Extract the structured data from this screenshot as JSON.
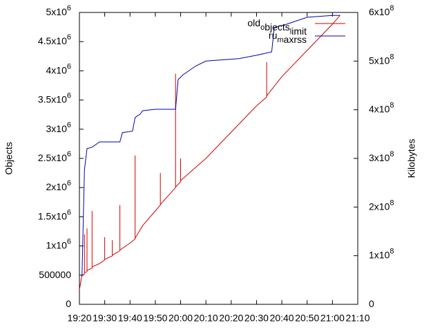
{
  "chart_data": {
    "type": "line",
    "y_label": "Objects",
    "y2_label": "Kilobytes",
    "xlim": [
      "19:20",
      "21:10"
    ],
    "xticks": [
      "19:20",
      "19:30",
      "19:40",
      "19:50",
      "20:00",
      "20:10",
      "20:20",
      "20:30",
      "20:40",
      "20:50",
      "21:00",
      "21:10"
    ],
    "ylim": [
      0,
      5000000
    ],
    "yticks": [
      0,
      500000,
      {
        "value": 1000000,
        "label": "1x10^6"
      },
      {
        "value": 1500000,
        "label": "1.5x10^6"
      },
      {
        "value": 2000000,
        "label": "2x10^6"
      },
      {
        "value": 2500000,
        "label": "2.5x10^6"
      },
      {
        "value": 3000000,
        "label": "3x10^6"
      },
      {
        "value": 3500000,
        "label": "3.5x10^6"
      },
      {
        "value": 4000000,
        "label": "4x10^6"
      },
      {
        "value": 4500000,
        "label": "4.5x10^6"
      },
      {
        "value": 5000000,
        "label": "5x10^6"
      }
    ],
    "y2lim": [
      0,
      600000000
    ],
    "y2ticks": [
      0,
      {
        "value": 100000000,
        "label": "1x10^8"
      },
      {
        "value": 200000000,
        "label": "2x10^8"
      },
      {
        "value": 300000000,
        "label": "3x10^8"
      },
      {
        "value": 400000000,
        "label": "4x10^8"
      },
      {
        "value": 500000000,
        "label": "5x10^8"
      },
      {
        "value": 600000000,
        "label": "6x10^8"
      }
    ],
    "legend": "top-right",
    "series": [
      {
        "name": "old_objects_limit",
        "color": "#d00000",
        "axis": "y",
        "x": [
          "19:20",
          "19:21",
          "19:22",
          "19:22",
          "19:22",
          "19:23",
          "19:23",
          "19:23",
          "19:25",
          "19:25",
          "19:25",
          "19:28",
          "19:30",
          "19:30",
          "19:30",
          "19:33",
          "19:33",
          "19:33",
          "19:36",
          "19:36",
          "19:36",
          "19:40",
          "19:42",
          "19:42",
          "19:42",
          "19:45",
          "19:50",
          "19:52",
          "19:52",
          "19:52",
          "19:58",
          "19:58",
          "19:58",
          "20:00",
          "20:00",
          "20:00",
          "20:10",
          "20:20",
          "20:30",
          "20:34",
          "20:34",
          "20:34",
          "20:40",
          "20:50",
          "21:00",
          "21:03"
        ],
        "values": [
          250000,
          500000,
          520000,
          1200000,
          540000,
          560000,
          1300000,
          580000,
          620000,
          1600000,
          640000,
          700000,
          760000,
          1150000,
          770000,
          830000,
          1100000,
          840000,
          920000,
          1700000,
          930000,
          1050000,
          1120000,
          2550000,
          1130000,
          1350000,
          1600000,
          1700000,
          2250000,
          1710000,
          2000000,
          3950000,
          2010000,
          2100000,
          2500000,
          2120000,
          2500000,
          2950000,
          3400000,
          3550000,
          4150000,
          3570000,
          3900000,
          4350000,
          4800000,
          4950000
        ]
      },
      {
        "name": "ru_maxrss",
        "color": "#0000b0",
        "axis": "y2",
        "x": [
          "19:21",
          "19:22",
          "19:23",
          "19:25",
          "19:28",
          "19:36",
          "19:37",
          "19:41",
          "19:42",
          "19:44",
          "19:45",
          "19:50",
          "19:58",
          "19:59",
          "20:01",
          "20:06",
          "20:10",
          "20:23",
          "20:30",
          "20:36",
          "20:37",
          "20:42",
          "20:50",
          "21:00",
          "21:03"
        ],
        "values": [
          57000000,
          277000000,
          320000000,
          323000000,
          334000000,
          334000000,
          353000000,
          356000000,
          384000000,
          391000000,
          398000000,
          401000000,
          401000000,
          462000000,
          472000000,
          490000000,
          500000000,
          505000000,
          512000000,
          519000000,
          569000000,
          576000000,
          590000000,
          594000000,
          594000000
        ]
      }
    ]
  }
}
